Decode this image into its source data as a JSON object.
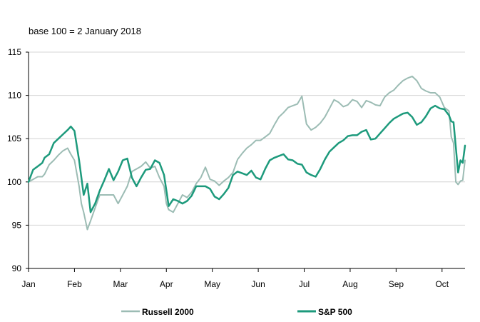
{
  "chart_data": {
    "type": "line",
    "subtitle": "base 100 = 2 January 2018",
    "xlabel": "",
    "ylabel": "",
    "ylim": [
      90,
      115
    ],
    "yticks": [
      90,
      95,
      100,
      105,
      110,
      115
    ],
    "xlim": [
      0,
      9.5
    ],
    "month_labels": [
      "Jan",
      "Feb",
      "Mar",
      "Apr",
      "May",
      "Jun",
      "Jul",
      "Aug",
      "Sep",
      "Oct"
    ],
    "grid": "horizontal",
    "legend_position": "bottom",
    "series": [
      {
        "name": "Russell 2000",
        "color": "#9cbcb4",
        "width": 2,
        "x": [
          0,
          0.1,
          0.2,
          0.3,
          0.35,
          0.45,
          0.55,
          0.65,
          0.75,
          0.85,
          0.92,
          1.0,
          1.1,
          1.15,
          1.2,
          1.28,
          1.35,
          1.45,
          1.55,
          1.65,
          1.75,
          1.85,
          1.95,
          2.05,
          2.15,
          2.25,
          2.35,
          2.45,
          2.55,
          2.65,
          2.75,
          2.85,
          2.95,
          3.0,
          3.05,
          3.15,
          3.25,
          3.35,
          3.45,
          3.55,
          3.65,
          3.75,
          3.85,
          3.95,
          4.05,
          4.15,
          4.25,
          4.35,
          4.45,
          4.55,
          4.65,
          4.75,
          4.85,
          4.95,
          5.05,
          5.15,
          5.25,
          5.35,
          5.45,
          5.55,
          5.65,
          5.75,
          5.85,
          5.95,
          6.05,
          6.15,
          6.25,
          6.35,
          6.45,
          6.55,
          6.65,
          6.75,
          6.85,
          6.95,
          7.05,
          7.15,
          7.25,
          7.35,
          7.45,
          7.55,
          7.65,
          7.75,
          7.85,
          7.95,
          8.05,
          8.15,
          8.25,
          8.35,
          8.45,
          8.55,
          8.65,
          8.75,
          8.85,
          8.95,
          9.05,
          9.15,
          9.2,
          9.25,
          9.3,
          9.35,
          9.4,
          9.45,
          9.5
        ],
        "values": [
          100,
          100.3,
          100.6,
          100.6,
          100.9,
          102,
          102.5,
          103.1,
          103.6,
          103.9,
          103.2,
          102.5,
          99.5,
          97.5,
          96.5,
          94.5,
          95.5,
          97,
          98.5,
          98.5,
          98.5,
          98.5,
          97.5,
          98.5,
          99.5,
          101.2,
          101.5,
          101.8,
          102.3,
          101.6,
          101.8,
          100.5,
          99.5,
          97.5,
          96.8,
          96.5,
          97.5,
          98.5,
          98.2,
          98.8,
          99.8,
          100.5,
          101.7,
          100.3,
          100.1,
          99.6,
          100.1,
          100.5,
          101.1,
          102.6,
          103.3,
          103.9,
          104.3,
          104.8,
          104.8,
          105.2,
          105.6,
          106.6,
          107.5,
          108,
          108.6,
          108.8,
          109,
          109.9,
          106.7,
          106,
          106.3,
          106.8,
          107.5,
          108.5,
          109.5,
          109.2,
          108.7,
          108.9,
          109.5,
          109.3,
          108.6,
          109.4,
          109.2,
          108.9,
          108.8,
          109.8,
          110.3,
          110.6,
          111.2,
          111.7,
          112,
          112.2,
          111.7,
          110.8,
          110.5,
          110.3,
          110.3,
          109.8,
          108.6,
          108.2,
          105.2,
          104.5,
          100,
          99.7,
          100.1,
          100.2,
          102.5
        ]
      },
      {
        "name": "S&P 500",
        "color": "#1d9a7c",
        "width": 2.5,
        "x": [
          0,
          0.1,
          0.2,
          0.3,
          0.35,
          0.45,
          0.55,
          0.65,
          0.75,
          0.85,
          0.92,
          1.0,
          1.1,
          1.15,
          1.2,
          1.28,
          1.35,
          1.45,
          1.55,
          1.65,
          1.75,
          1.85,
          1.95,
          2.05,
          2.15,
          2.25,
          2.35,
          2.45,
          2.55,
          2.65,
          2.75,
          2.85,
          2.95,
          3.0,
          3.05,
          3.15,
          3.25,
          3.35,
          3.45,
          3.55,
          3.65,
          3.75,
          3.85,
          3.95,
          4.05,
          4.15,
          4.25,
          4.35,
          4.45,
          4.55,
          4.65,
          4.75,
          4.85,
          4.95,
          5.05,
          5.15,
          5.25,
          5.35,
          5.45,
          5.55,
          5.65,
          5.75,
          5.85,
          5.95,
          6.05,
          6.15,
          6.25,
          6.35,
          6.45,
          6.55,
          6.65,
          6.75,
          6.85,
          6.95,
          7.05,
          7.15,
          7.25,
          7.35,
          7.45,
          7.55,
          7.65,
          7.75,
          7.85,
          7.95,
          8.05,
          8.15,
          8.25,
          8.35,
          8.45,
          8.55,
          8.65,
          8.75,
          8.85,
          8.95,
          9.05,
          9.15,
          9.2,
          9.25,
          9.3,
          9.35,
          9.4,
          9.45,
          9.5
        ],
        "values": [
          100,
          101.4,
          101.8,
          102.2,
          102.8,
          103.2,
          104.5,
          105,
          105.5,
          106,
          106.4,
          105.9,
          102.5,
          100.5,
          98.5,
          99.8,
          96.5,
          97.5,
          99,
          100.2,
          101.5,
          100.2,
          101.2,
          102.5,
          102.7,
          100.5,
          99.5,
          100.5,
          101.4,
          101.5,
          102.5,
          102.2,
          100.8,
          99,
          97.2,
          98,
          97.8,
          97.5,
          97.8,
          98.4,
          99.5,
          99.5,
          99.5,
          99.2,
          98.3,
          98,
          98.6,
          99.3,
          100.8,
          101.2,
          101,
          100.8,
          101.3,
          100.5,
          100.3,
          101.5,
          102.5,
          102.8,
          103,
          103.2,
          102.6,
          102.5,
          102.1,
          102,
          101.1,
          100.8,
          100.6,
          101.5,
          102.6,
          103.5,
          104,
          104.5,
          104.8,
          105.3,
          105.4,
          105.4,
          105.8,
          106,
          104.9,
          105,
          105.6,
          106.2,
          106.8,
          107.3,
          107.6,
          107.9,
          108,
          107.5,
          106.6,
          106.9,
          107.6,
          108.5,
          108.8,
          108.5,
          108.4,
          107.7,
          107,
          106.9,
          104,
          101.1,
          102.5,
          102.2,
          104.2
        ]
      }
    ]
  }
}
